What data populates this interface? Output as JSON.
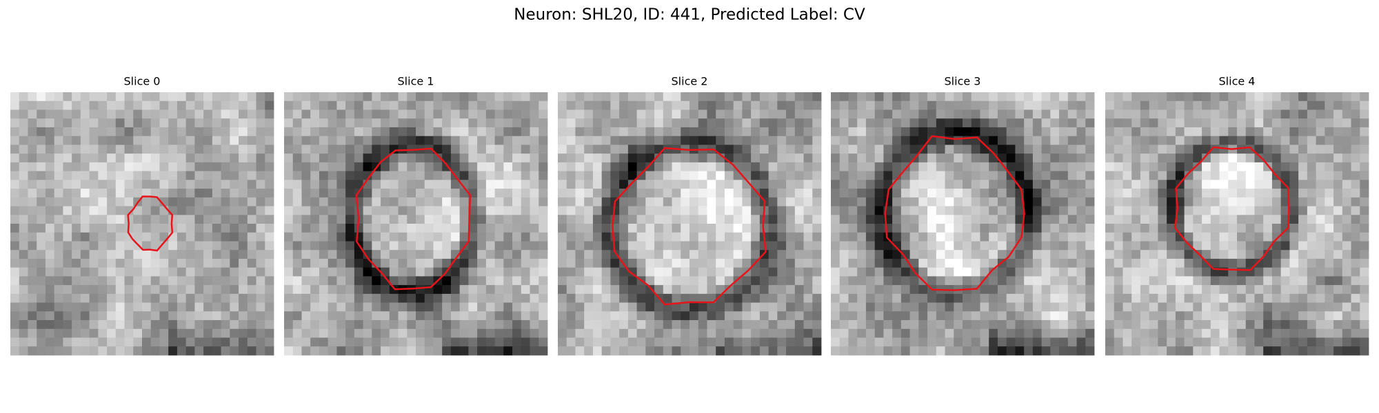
{
  "title": "Neuron: SHL20, ID: 441, Predicted Label: CV",
  "panels": [
    {
      "title": "Slice 0"
    },
    {
      "title": "Slice 1"
    },
    {
      "title": "Slice 2"
    },
    {
      "title": "Slice 3"
    },
    {
      "title": "Slice 4"
    }
  ]
}
